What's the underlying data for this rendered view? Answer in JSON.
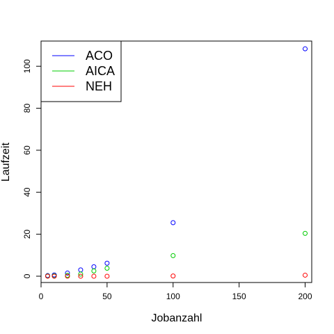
{
  "chart_data": {
    "type": "scatter",
    "title": "",
    "xlabel": "Jobanzahl",
    "ylabel": "Laufzeit",
    "xlim": [
      0,
      205
    ],
    "ylim": [
      -3,
      112
    ],
    "xticks": [
      0,
      50,
      100,
      150,
      200
    ],
    "yticks": [
      0,
      20,
      40,
      60,
      80,
      100
    ],
    "legend_position": "top-left",
    "series": [
      {
        "name": "ACO",
        "color": "#0000ff",
        "x": [
          5,
          10,
          20,
          30,
          40,
          50,
          100,
          200
        ],
        "y": [
          0.3,
          0.6,
          1.5,
          3.0,
          4.5,
          6.2,
          25.5,
          108.3
        ]
      },
      {
        "name": "AICA",
        "color": "#00cc00",
        "x": [
          5,
          10,
          20,
          30,
          40,
          50,
          100,
          200
        ],
        "y": [
          0.1,
          0.2,
          0.4,
          1.0,
          2.5,
          3.8,
          9.8,
          20.4
        ]
      },
      {
        "name": "NEH",
        "color": "#ff0000",
        "x": [
          5,
          10,
          20,
          30,
          40,
          50,
          100,
          200
        ],
        "y": [
          0.0,
          0.0,
          0.0,
          0.0,
          0.0,
          0.0,
          0.1,
          0.5
        ]
      }
    ]
  }
}
